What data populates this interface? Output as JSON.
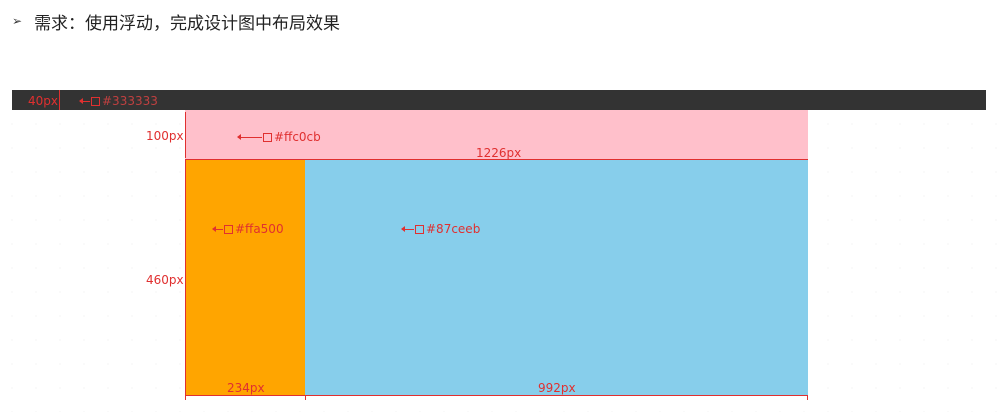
{
  "requirement": {
    "bullet": "➢",
    "text": "需求：使用浮动，完成设计图中布局效果"
  },
  "topbar": {
    "height_label": "40px",
    "color_label": "#333333",
    "color": "#333333"
  },
  "header_block": {
    "height_label": "100px",
    "color_label": "#ffc0cb",
    "width_label": "1226px",
    "color": "#ffc0cb"
  },
  "aside_block": {
    "color_label": "#ffa500",
    "width_label": "234px",
    "color": "#ffa500"
  },
  "main_block": {
    "color_label": "#87ceeb",
    "width_label": "992px",
    "color": "#87ceeb"
  },
  "body_height_label": "460px",
  "annotation_color": "#e03030"
}
